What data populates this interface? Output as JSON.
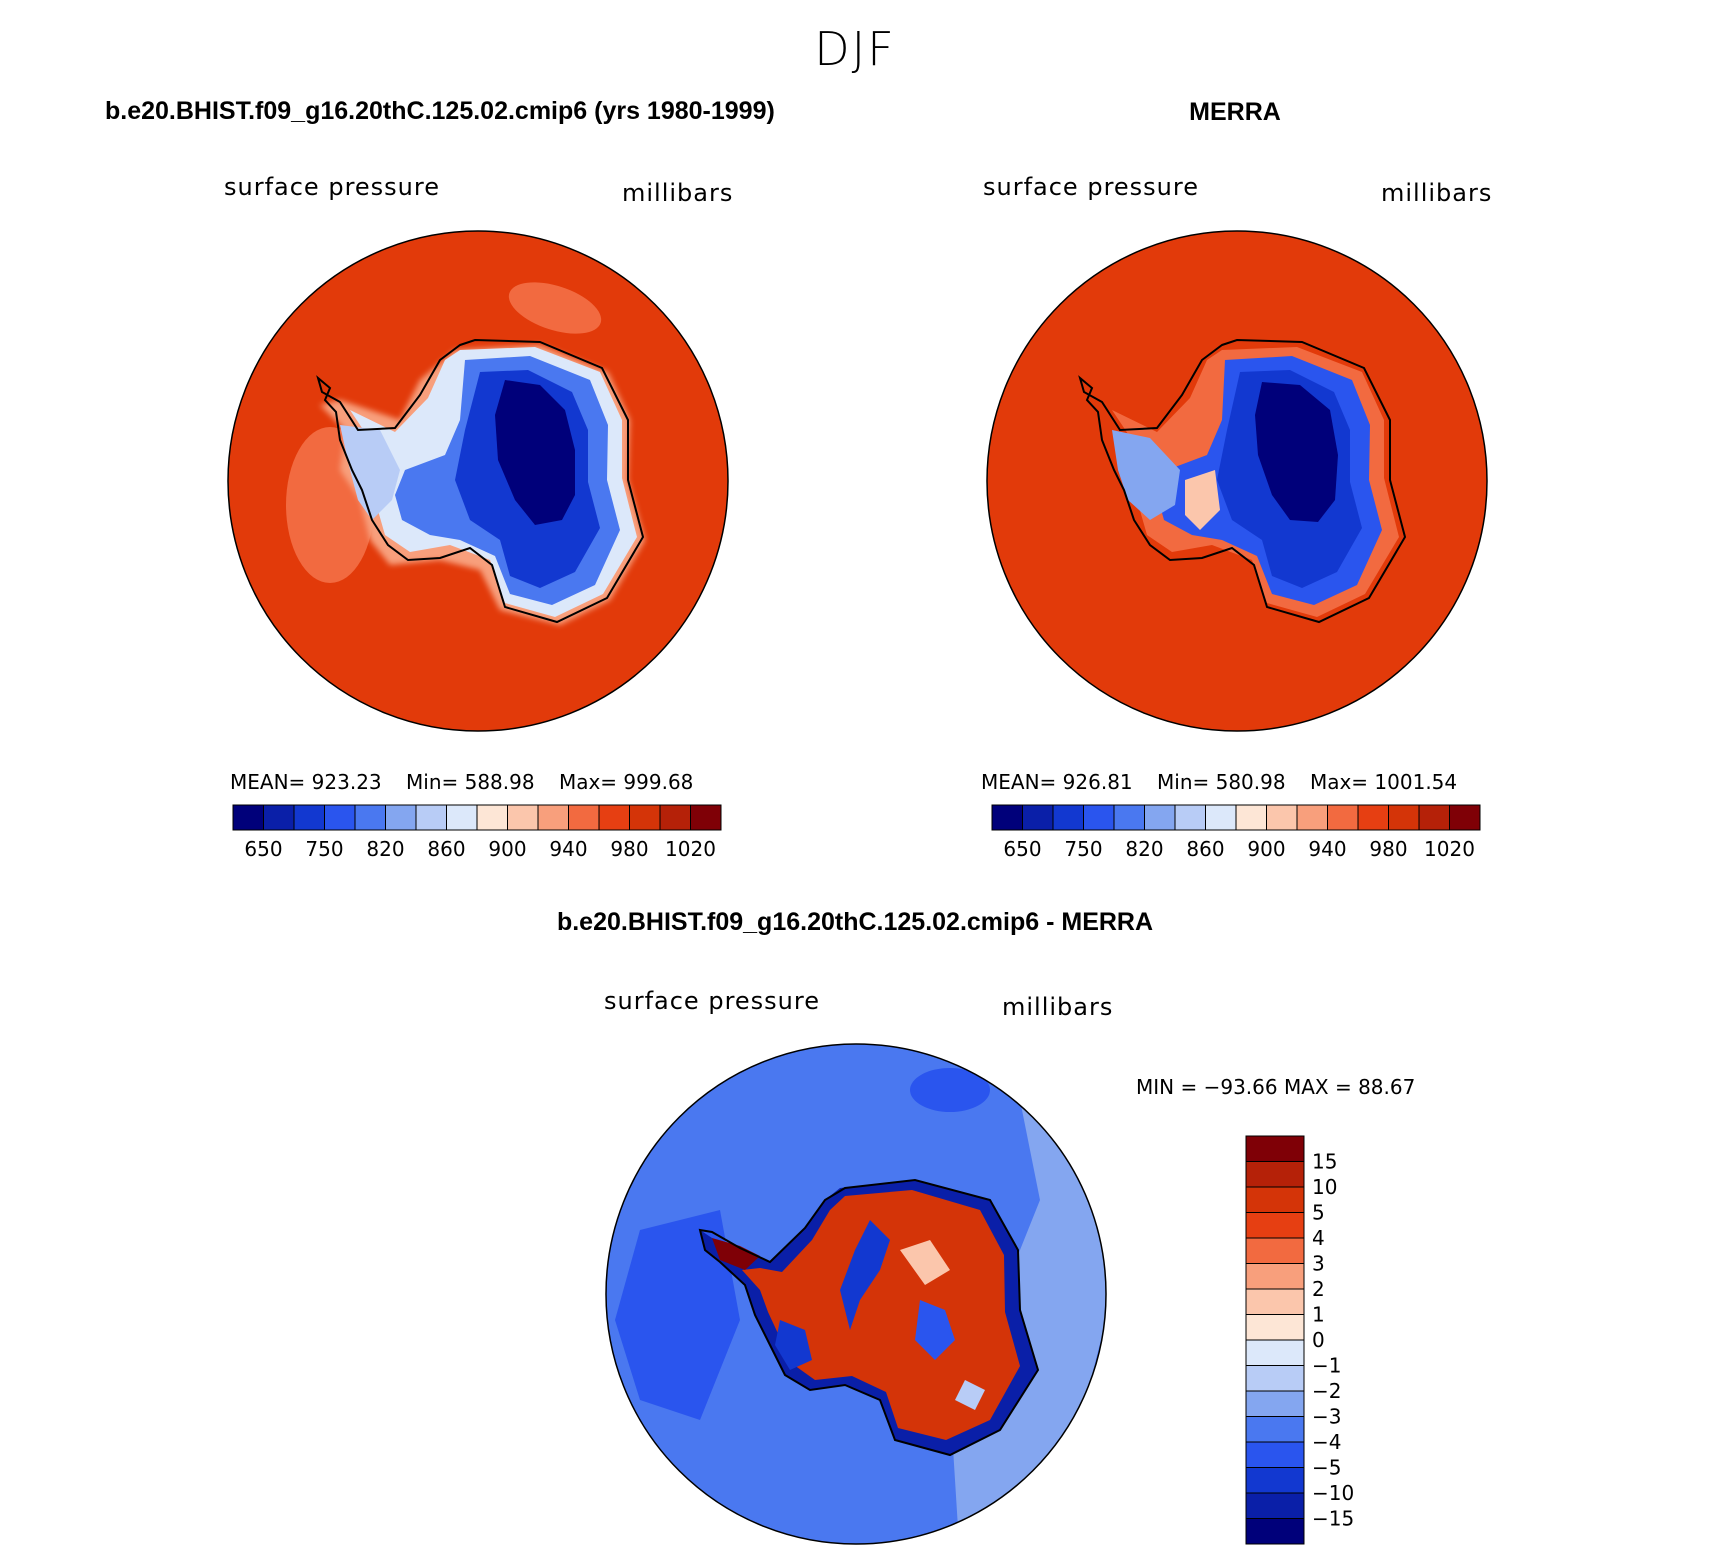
{
  "season": "DJF",
  "panel_left": {
    "title": "b.e20.BHIST.f09_g16.20thC.125.02.cmip6 (yrs 1980-1999)",
    "variable": "surface pressure",
    "units": "millibars",
    "mean_label": "MEAN=",
    "mean": "923.23",
    "min_label": "Min=",
    "min": "588.98",
    "max_label": "Max=",
    "max": "999.68"
  },
  "panel_right": {
    "title": "MERRA",
    "variable": "surface pressure",
    "units": "millibars",
    "mean_label": "MEAN=",
    "mean": "926.81",
    "min_label": "Min=",
    "min": "580.98",
    "max_label": "Max=",
    "max": "1001.54"
  },
  "panel_diff": {
    "title": "b.e20.BHIST.f09_g16.20thC.125.02.cmip6 - MERRA",
    "variable": "surface pressure",
    "units": "millibars",
    "minmax": "MIN = −93.66 MAX =  88.67"
  },
  "chart_data": [
    {
      "type": "heatmap",
      "projection": "south polar stereographic",
      "title": "b.e20.BHIST.f09_g16.20thC.125.02.cmip6 (yrs 1980-1999)",
      "field": "surface pressure",
      "units": "millibars",
      "stats": {
        "mean": 923.23,
        "min": 588.98,
        "max": 999.68
      },
      "colorbar": {
        "colors": [
          "#00007a",
          "#0a1fa8",
          "#1238d0",
          "#2a55ee",
          "#4a78f0",
          "#84a6f0",
          "#b8ccf6",
          "#dce8fa",
          "#fde6d6",
          "#fbc6ac",
          "#f89f7c",
          "#f26a40",
          "#e63f12",
          "#d43408",
          "#b52108",
          "#7f0006"
        ],
        "tick_labels": [
          "650",
          "750",
          "820",
          "860",
          "900",
          "940",
          "980",
          "1020"
        ]
      }
    },
    {
      "type": "heatmap",
      "projection": "south polar stereographic",
      "title": "MERRA",
      "field": "surface pressure",
      "units": "millibars",
      "stats": {
        "mean": 926.81,
        "min": 580.98,
        "max": 1001.54
      },
      "colorbar": {
        "colors": [
          "#00007a",
          "#0a1fa8",
          "#1238d0",
          "#2a55ee",
          "#4a78f0",
          "#84a6f0",
          "#b8ccf6",
          "#dce8fa",
          "#fde6d6",
          "#fbc6ac",
          "#f89f7c",
          "#f26a40",
          "#e63f12",
          "#d43408",
          "#b52108",
          "#7f0006"
        ],
        "tick_labels": [
          "650",
          "750",
          "820",
          "860",
          "900",
          "940",
          "980",
          "1020"
        ]
      }
    },
    {
      "type": "heatmap",
      "projection": "south polar stereographic",
      "title": "b.e20.BHIST.f09_g16.20thC.125.02.cmip6 - MERRA",
      "field": "surface pressure difference",
      "units": "millibars",
      "stats": {
        "min": -93.66,
        "max": 88.67
      },
      "colorbar": {
        "colors": [
          "#7f0006",
          "#b52108",
          "#d43408",
          "#e63f12",
          "#f26a40",
          "#f89f7c",
          "#fbc6ac",
          "#fde6d6",
          "#dce8fa",
          "#b8ccf6",
          "#84a6f0",
          "#4a78f0",
          "#2a55ee",
          "#1238d0",
          "#0a1fa8",
          "#00007a"
        ],
        "tick_labels": [
          "15",
          "10",
          "5",
          "4",
          "3",
          "2",
          "1",
          "0",
          "−1",
          "−2",
          "−3",
          "−4",
          "−5",
          "−10",
          "−15"
        ]
      }
    }
  ]
}
